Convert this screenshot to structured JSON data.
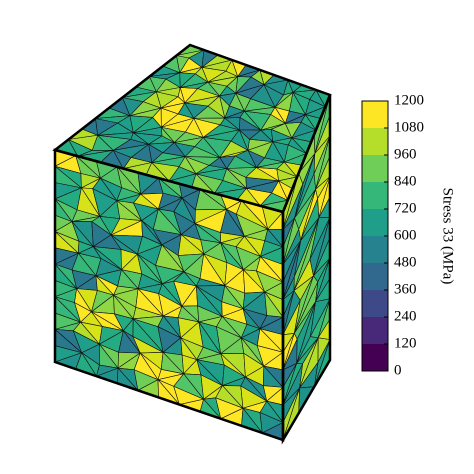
{
  "colorbar": {
    "label": "Stress 33 (MPa)",
    "lim": [
      0,
      1200
    ],
    "ticks": [
      0,
      120,
      240,
      360,
      480,
      600,
      720,
      840,
      960,
      1080,
      1200
    ],
    "colors": [
      "#440154",
      "#482878",
      "#3e4989",
      "#31688e",
      "#26828e",
      "#1f9e89",
      "#35b779",
      "#6ece58",
      "#b5de2b",
      "#fde725"
    ]
  }
}
